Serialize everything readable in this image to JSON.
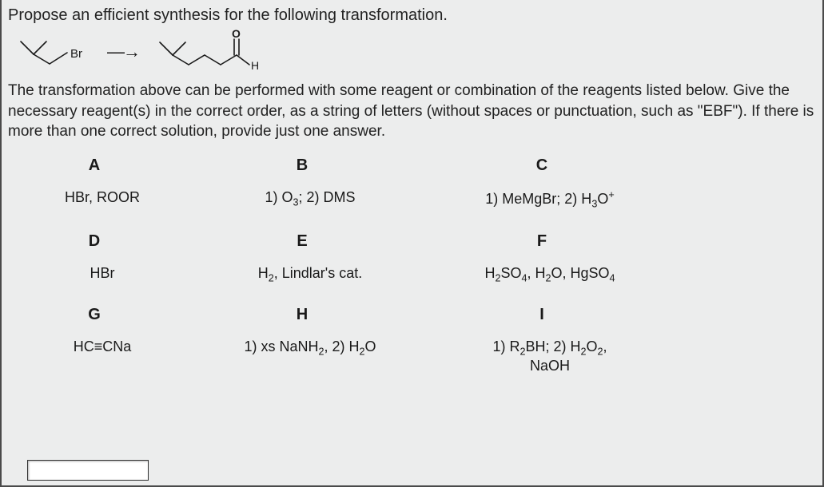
{
  "question": {
    "prompt": "Propose an efficient synthesis for the following transformation.",
    "intro": "The transformation above can be performed with some reagent or combination of the reagents listed below. Give the necessary reagent(s) in the correct order, as a string of letters (without spaces or punctuation, such as \"EBF\"). If there is more than one correct solution, provide just one answer."
  },
  "scheme": {
    "left_label": "Br",
    "arrow": "→",
    "right_top": "O",
    "right_bottom": "H",
    "stroke_color": "#1a1a1a",
    "stroke_width": 1.6
  },
  "reagents": {
    "headers": [
      "A",
      "B",
      "C",
      "D",
      "E",
      "F",
      "G",
      "H",
      "I"
    ],
    "values_html": [
      "HBr, ROOR",
      "1) O<sub>3</sub>; 2) DMS",
      "1) MeMgBr; 2) H<sub>3</sub>O<sup>+</sup>",
      "HBr",
      "H<sub>2</sub>, Lindlar's cat.",
      "H<sub>2</sub>SO<sub>4</sub>, H<sub>2</sub>O, HgSO<sub>4</sub>",
      "HC≡CNa",
      "1) xs NaNH<sub>2</sub>, 2) H<sub>2</sub>O",
      "1) R<sub>2</sub>BH; 2) H<sub>2</sub>O<sub>2</sub>, NaOH"
    ]
  },
  "colors": {
    "bg": "#eceded",
    "text": "#1a1a1a",
    "border": "#4a4a4a"
  }
}
